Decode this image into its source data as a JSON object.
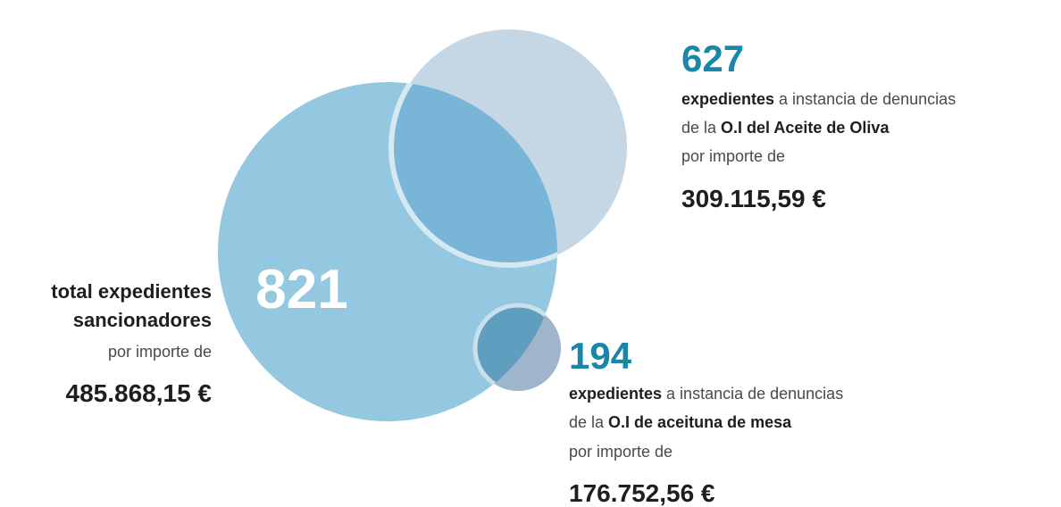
{
  "center": {
    "count": "821",
    "label_line1": "total expedientes",
    "label_line2": "sancionadores",
    "label_line3": "por importe de",
    "amount": "485.868,15 €"
  },
  "olive_oil": {
    "count": "627",
    "line1_bold": "expedientes",
    "line1_rest": "a instancia de denuncias",
    "line2_rest": "de la",
    "line2_bold": "O.I del Aceite de Oliva",
    "line3": "por importe de",
    "amount": "309.115,59 €"
  },
  "table_olives": {
    "count": "194",
    "line1_bold": "expedientes",
    "line1_rest": "a instancia de denuncias",
    "line2_rest": "de la",
    "line2_bold": "O.I de aceituna de mesa",
    "line3": "por importe de",
    "amount": "176.752,56 €"
  }
}
